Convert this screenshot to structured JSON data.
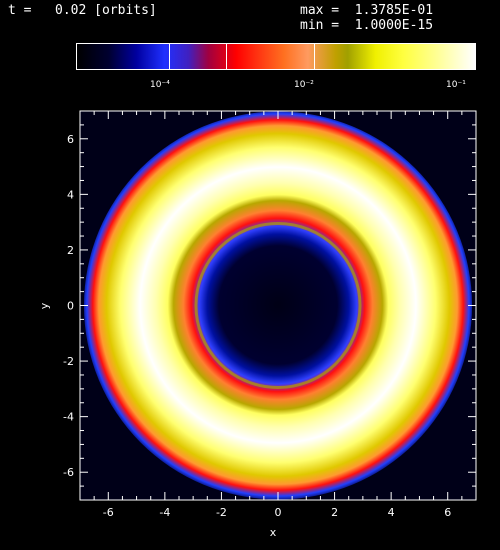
{
  "header": {
    "time_label": "t =",
    "time_value": "0.02 [orbits]",
    "max_text": "max =  1.3785E-01",
    "min_text": "min =  1.0000E-15"
  },
  "colorbar": {
    "tick_labels": [
      "10⁻⁴",
      "10⁻²",
      "10⁻¹"
    ],
    "tick_positions": [
      0.22,
      0.58,
      0.96
    ]
  },
  "colors": {
    "background": "#000000",
    "disk_low": "#00003a",
    "blue": "#2040ff",
    "red": "#ff1010",
    "orange": "#ff9a30",
    "olive": "#b8a700",
    "yellow": "#ffff40",
    "white": "#ffffff"
  },
  "chart_data": {
    "type": "heatmap",
    "title": "",
    "xlabel": "x",
    "ylabel": "y",
    "xlim": [
      -7,
      7
    ],
    "ylim": [
      -7,
      7
    ],
    "x_ticks": [
      "-6",
      "-4",
      "-2",
      "0",
      "2",
      "4",
      "6"
    ],
    "y_ticks": [
      "-6",
      "-4",
      "-2",
      "0",
      "2",
      "4",
      "6"
    ],
    "scale": "log",
    "value_max": "1.3785E-01",
    "value_min": "1.0000E-15",
    "structure": {
      "description": "annular disk (ring) centered at origin",
      "inner_radius": 2.9,
      "outer_radius": 7.0,
      "peak_radius": 4.8
    }
  }
}
